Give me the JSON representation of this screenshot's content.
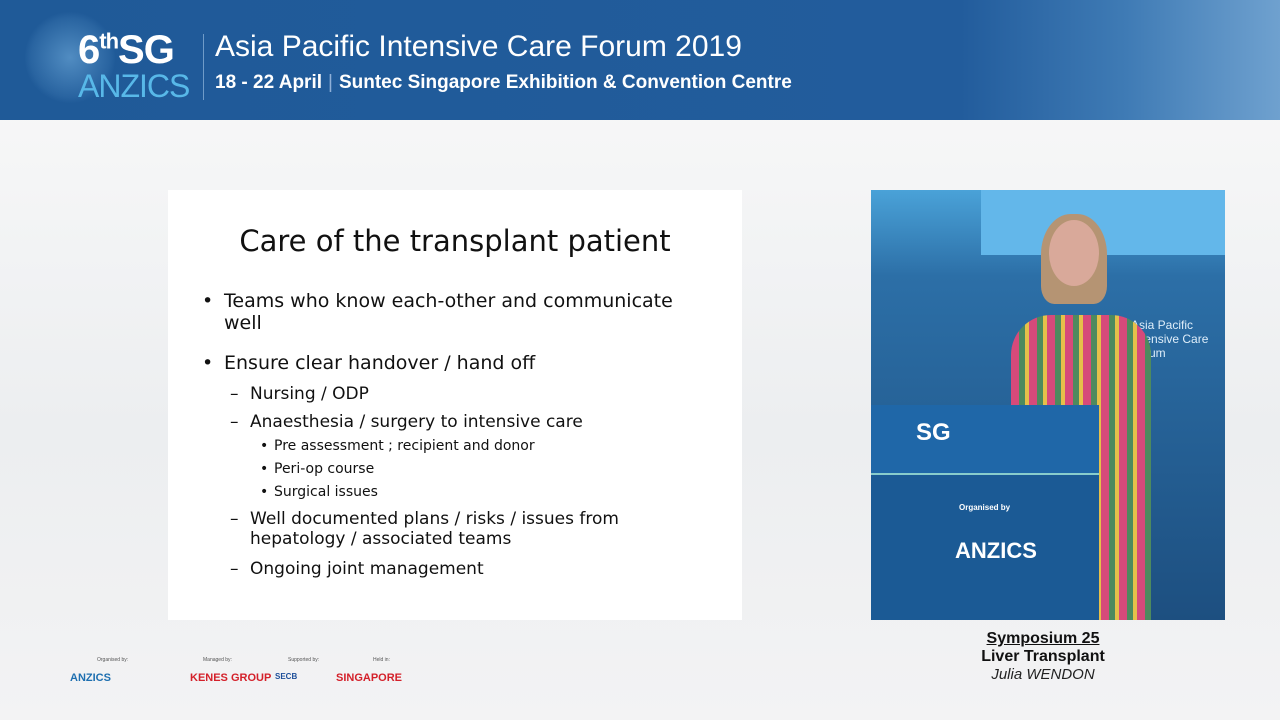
{
  "header": {
    "logo_number": "6",
    "logo_suffix": "th",
    "logo_sg": "SG",
    "logo_org": "ANZICS",
    "title": "Asia Pacific Intensive Care Forum 2019",
    "dates": "18 - 22 April",
    "venue": "Suntec Singapore Exhibition & Convention Centre"
  },
  "slide": {
    "title": "Care of the transplant patient",
    "items": [
      {
        "level": 1,
        "text": "Teams who know each-other and communicate well"
      },
      {
        "level": 1,
        "text": "Ensure clear handover / hand off"
      },
      {
        "level": 2,
        "text": "Nursing / ODP"
      },
      {
        "level": 2,
        "text": "Anaesthesia / surgery to intensive care"
      },
      {
        "level": 3,
        "text": "Pre assessment ; recipient and donor"
      },
      {
        "level": 3,
        "text": "Peri-op course"
      },
      {
        "level": 3,
        "text": "Surgical issues"
      },
      {
        "level": 2,
        "text": "Well documented plans / risks / issues from hepatology / associated teams"
      },
      {
        "level": 2,
        "text": "Ongoing joint management"
      }
    ],
    "bullet_l1": "•",
    "bullet_l2": "–",
    "bullet_l3": "•"
  },
  "video": {
    "podium_organised": "Organised by",
    "podium_org": "ANZICS",
    "backdrop": "Asia Pacific Intensive Care Forum"
  },
  "caption": {
    "session": "Symposium 25",
    "topic": "Liver Transplant",
    "speaker": "Julia WENDON"
  },
  "sponsors": [
    {
      "label": "Organised by:",
      "name": "ANZICS",
      "color": "#1e6fb0"
    },
    {
      "label": "Managed by:",
      "name": "KENES GROUP",
      "color": "#d4202a"
    },
    {
      "label": "Supported by:",
      "name": "SECB",
      "color": "#1e4f9a"
    },
    {
      "label": "Held in:",
      "name": "SINGAPORE",
      "color": "#d4202a"
    }
  ]
}
